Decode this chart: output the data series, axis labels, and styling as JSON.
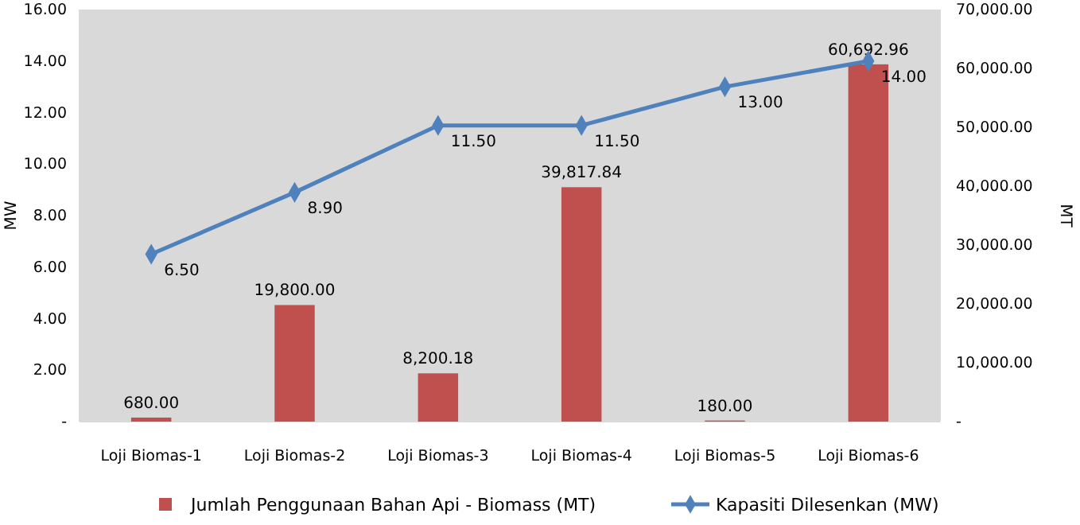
{
  "chart_data": {
    "type": "bar",
    "categories": [
      "Loji Biomas-1",
      "Loji Biomas-2",
      "Loji Biomas-3",
      "Loji Biomas-4",
      "Loji Biomas-5",
      "Loji Biomas-6"
    ],
    "ylabel": "MW",
    "y2label": "MT",
    "ylim": [
      0,
      16
    ],
    "yticks": [
      {
        "value": 0,
        "label": "-"
      },
      {
        "value": 2,
        "label": "2.00"
      },
      {
        "value": 4,
        "label": "4.00"
      },
      {
        "value": 6,
        "label": "6.00"
      },
      {
        "value": 8,
        "label": "8.00"
      },
      {
        "value": 10,
        "label": "10.00"
      },
      {
        "value": 12,
        "label": "12.00"
      },
      {
        "value": 14,
        "label": "14.00"
      },
      {
        "value": 16,
        "label": "16.00"
      }
    ],
    "y2lim": [
      0,
      70000
    ],
    "y2ticks": [
      {
        "value": 0,
        "label": "-"
      },
      {
        "value": 10000,
        "label": "10,000.00"
      },
      {
        "value": 20000,
        "label": "20,000.00"
      },
      {
        "value": 30000,
        "label": "30,000.00"
      },
      {
        "value": 40000,
        "label": "40,000.00"
      },
      {
        "value": 50000,
        "label": "50,000.00"
      },
      {
        "value": 60000,
        "label": "60,000.00"
      },
      {
        "value": 70000,
        "label": "70,000.00"
      }
    ],
    "legend": "bottom",
    "grid": false,
    "series": [
      {
        "name": "Jumlah Penggunaan Bahan Api - Biomass (MT)",
        "axis": "y2",
        "color": "#c0504d",
        "values": [
          680,
          19800,
          8200.18,
          39817.84,
          180,
          60692.96
        ],
        "value_labels": [
          "680.00",
          "19,800.00",
          "8,200.18",
          "39,817.84",
          "180.00",
          "60,692.96"
        ]
      },
      {
        "name": "Kapasiti Dilesenkan (MW)",
        "type": "line",
        "axis": "y",
        "color": "#4f81bd",
        "marker": "diamond",
        "values": [
          6.5,
          8.9,
          11.5,
          11.5,
          13,
          14
        ],
        "value_labels": [
          "6.50",
          "8.90",
          "11.50",
          "11.50",
          "13.00",
          "14.00"
        ]
      }
    ]
  }
}
